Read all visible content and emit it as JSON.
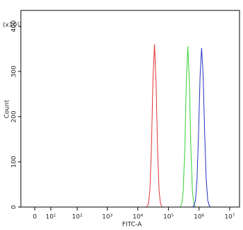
{
  "chart_data": {
    "type": "line",
    "scale_x": "symlog",
    "corner_note": "(x10¹)",
    "xlabel": "FITC-A",
    "ylabel": "Count",
    "xlim": [
      -8,
      21000000
    ],
    "ylim": [
      0,
      435
    ],
    "xticks": [
      0,
      {
        "value": 10,
        "label": "10¹"
      },
      {
        "value": 100,
        "label": "10²"
      },
      {
        "value": 1000,
        "label": "10³"
      },
      {
        "value": 10000,
        "label": "10⁴"
      },
      {
        "value": 100000,
        "label": "10⁵"
      },
      {
        "value": 1000000,
        "label": "10⁶"
      },
      {
        "value": 10000000,
        "label": "10⁷"
      }
    ],
    "yticks": [
      0,
      100,
      200,
      300,
      400
    ],
    "series": [
      {
        "color": "#e03030",
        "x": [
          19700,
          22000,
          24700,
          27800,
          31100,
          35000,
          39200,
          44000,
          49400,
          55400,
          62200
        ],
        "values": [
          1,
          6,
          36,
          130,
          279,
          360,
          279,
          130,
          36,
          6,
          1
        ]
      },
      {
        "color": "#30d030",
        "x": [
          241800,
          271300,
          304400,
          341600,
          383200,
          430000,
          482500,
          541300,
          607400,
          681500,
          764700
        ],
        "values": [
          1,
          6,
          35,
          128,
          275,
          355,
          275,
          128,
          35,
          6,
          1
        ]
      },
      {
        "color": "#2030c0",
        "x": [
          607400,
          681500,
          764700,
          858000,
          962600,
          1080000,
          1212000,
          1360000,
          1526000,
          1712000,
          1921000,
          2155000,
          2418000
        ],
        "values": [
          0,
          3,
          15,
          61,
          162,
          290,
          352,
          290,
          162,
          61,
          15,
          3,
          0
        ]
      }
    ]
  }
}
